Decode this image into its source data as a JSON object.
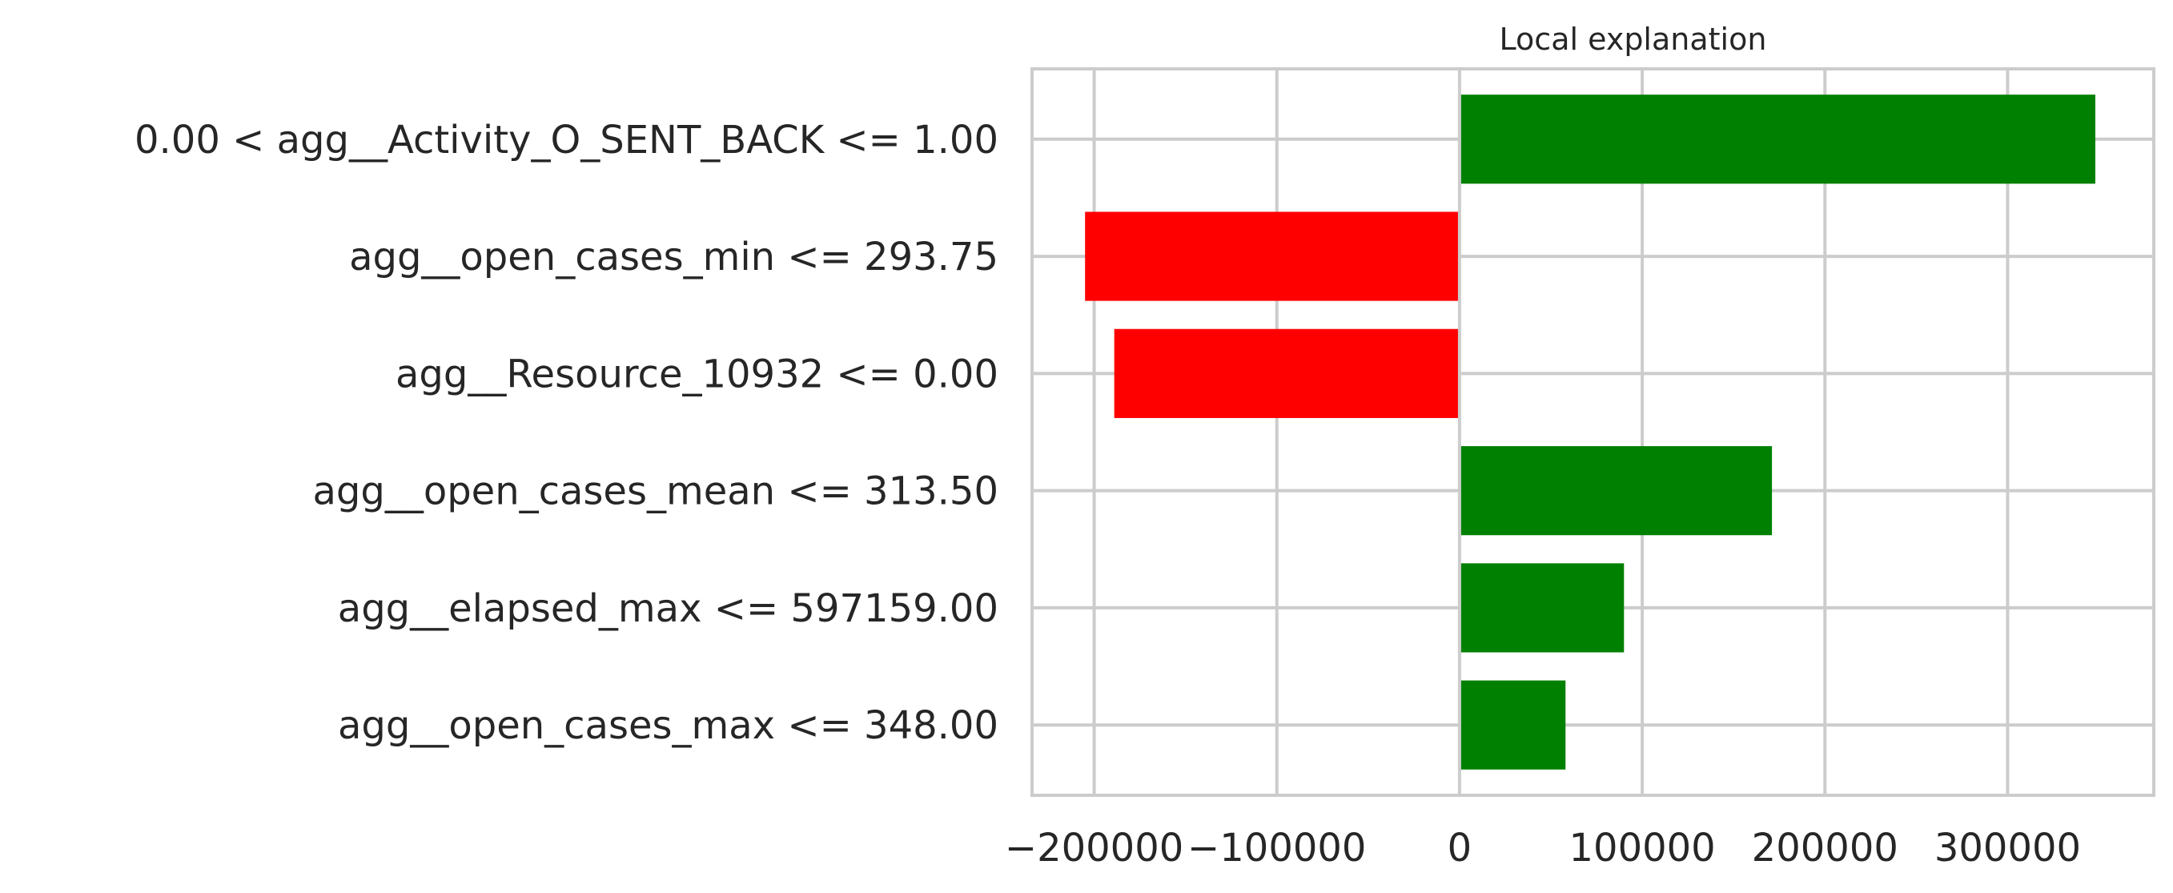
{
  "chart_data": {
    "type": "bar",
    "orientation": "horizontal",
    "title": "Local explanation",
    "xlabel": "",
    "ylabel": "",
    "categories": [
      "0.00 < agg__Activity_O_SENT_BACK <= 1.00",
      "agg__open_cases_min <= 293.75",
      "agg__Resource_10932 <= 0.00",
      "agg__open_cases_mean <= 313.50",
      "agg__elapsed_max <= 597159.00",
      "agg__open_cases_max <= 348.00"
    ],
    "values": [
      348000,
      -205000,
      -189000,
      171000,
      90000,
      58000
    ],
    "xticks": [
      -200000,
      -100000,
      0,
      100000,
      200000,
      300000
    ],
    "xtick_labels": [
      "−200000",
      "−100000",
      "0",
      "100000",
      "200000",
      "300000"
    ],
    "xlim": [
      -234000,
      380000
    ],
    "positive_color": "#008000",
    "negative_color": "#ff0000",
    "grid": true
  }
}
